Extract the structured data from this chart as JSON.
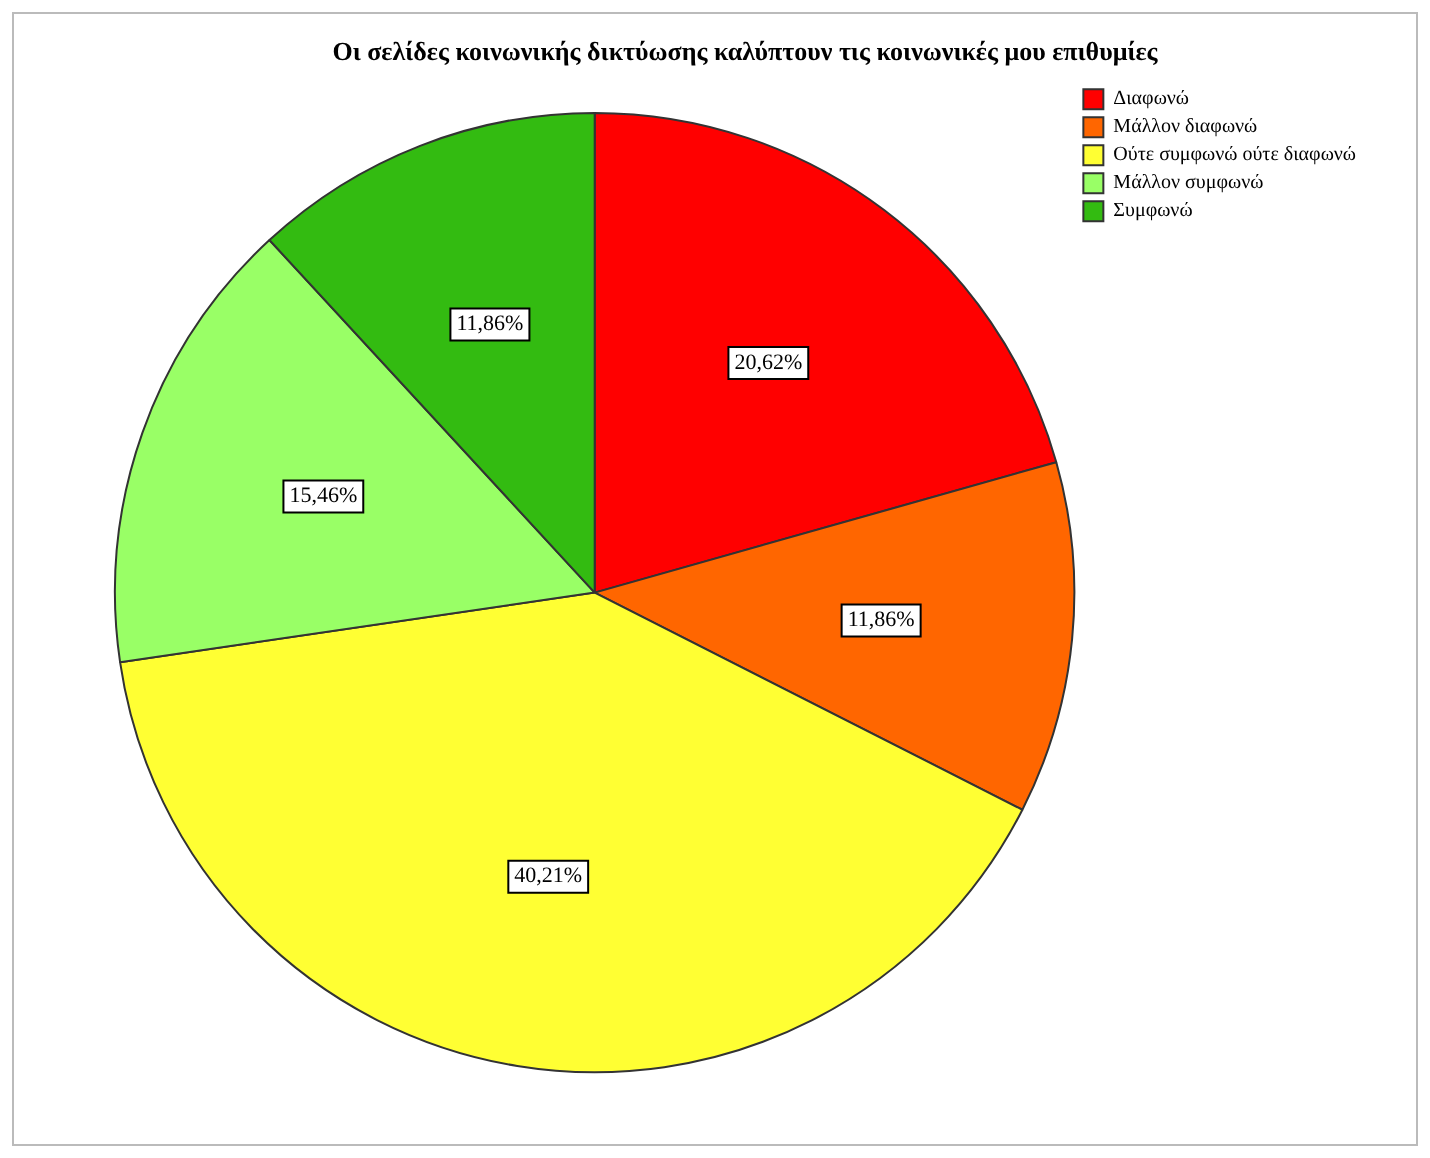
{
  "chart_data": {
    "type": "pie",
    "title": "Οι σελίδες κοινωνικής δικτύωσης καλύπτουν τις κοινωνικές μου επιθυμίες",
    "categories": [
      "Διαφωνώ",
      "Μάλλον διαφωνώ",
      "Ούτε συμφωνώ ούτε διαφωνώ",
      "Μάλλον συμφωνώ",
      "Συμφωνώ"
    ],
    "values": [
      20.62,
      11.86,
      40.21,
      15.46,
      11.86
    ],
    "colors": [
      "#ff0000",
      "#ff6600",
      "#ffff33",
      "#99ff66",
      "#33bb11"
    ],
    "value_labels": [
      "20,62%",
      "11,86%",
      "40,21%",
      "15,46%",
      "11,86%"
    ],
    "legend": "top right"
  }
}
